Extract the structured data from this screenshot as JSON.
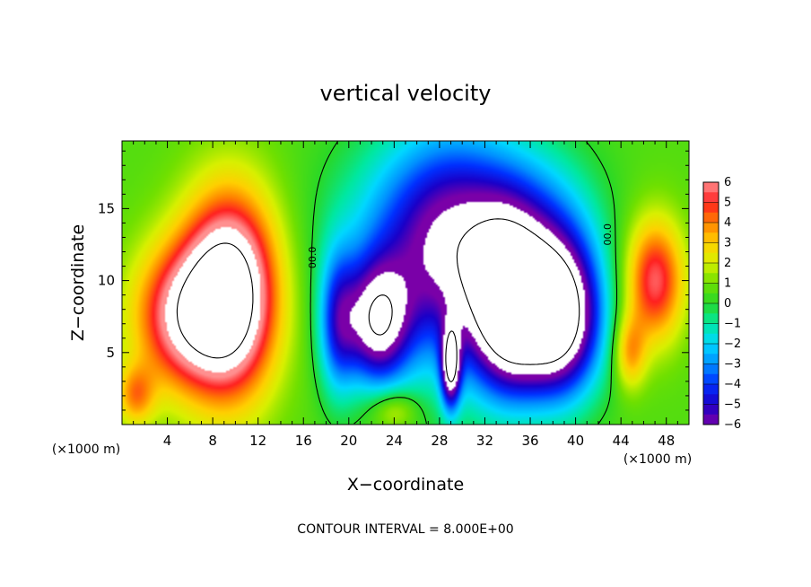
{
  "chart_data": {
    "type": "heatmap",
    "title": "vertical velocity",
    "xlabel": "X−coordinate",
    "ylabel": "Z−coordinate",
    "x_unit": "(×1000 m)",
    "y_unit": "(×1000 m)",
    "xlim": [
      0,
      50
    ],
    "ylim": [
      0,
      19.7
    ],
    "x_ticks": [
      4,
      8,
      12,
      16,
      20,
      24,
      28,
      32,
      36,
      40,
      44,
      48
    ],
    "y_ticks": [
      5,
      10,
      15
    ],
    "footer": "CONTOUR INTERVAL = 8.000E+00",
    "contour_label": "00.0",
    "colorbar": {
      "min": -6,
      "max": 6,
      "ticks": [
        6,
        5,
        4,
        3,
        2,
        1,
        0,
        -1,
        -2,
        -3,
        -4,
        -5,
        -6
      ],
      "tick_labels": [
        "6",
        "5",
        "4",
        "3",
        "2",
        "1",
        "0",
        "−1",
        "−2",
        "−3",
        "−4",
        "−5",
        "−6"
      ],
      "colors": [
        "#7a00a8",
        "#1a00c8",
        "#0030ff",
        "#0090ff",
        "#00d8ff",
        "#00e8a0",
        "#28d828",
        "#70e000",
        "#d8f000",
        "#ffd000",
        "#ff8000",
        "#ff2020",
        "#ff9090"
      ],
      "over_color": "#ffffff",
      "under_color": "#ffffff"
    },
    "anomalies": [
      {
        "x": 9.5,
        "z": 9.0,
        "value": 9,
        "sx": 2.9,
        "sz": 4.8
      },
      {
        "x": 5.0,
        "z": 7.5,
        "value": 5,
        "sx": 3.0,
        "sz": 3.5
      },
      {
        "x": 1.2,
        "z": 2.0,
        "value": 3,
        "sx": 1.2,
        "sz": 1.5
      },
      {
        "x": 47.0,
        "z": 10.0,
        "value": 5,
        "sx": 1.8,
        "sz": 3.0
      },
      {
        "x": 44.8,
        "z": 5.0,
        "value": 3,
        "sx": 1.0,
        "sz": 1.8
      },
      {
        "x": 24.0,
        "z": 1.0,
        "value": 2,
        "sx": 1.5,
        "sz": 1.0
      },
      {
        "x": 38.5,
        "z": 7.5,
        "value": -10,
        "sx": 2.6,
        "sz": 3.8
      },
      {
        "x": 34.0,
        "z": 8.0,
        "value": -8,
        "sx": 2.3,
        "sz": 4.0
      },
      {
        "x": 22.5,
        "z": 7.0,
        "value": -7,
        "sx": 2.0,
        "sz": 3.0
      },
      {
        "x": 29.5,
        "z": 11.5,
        "value": -5,
        "sx": 4.0,
        "sz": 6.0
      },
      {
        "x": 29.0,
        "z": 4.0,
        "value": -7,
        "sx": 0.6,
        "sz": 2.0
      },
      {
        "x": 25.5,
        "z": 13.0,
        "value": -3,
        "sx": 5.0,
        "sz": 5.0
      },
      {
        "x": 36.0,
        "z": 14.0,
        "value": -3,
        "sx": 4.0,
        "sz": 4.0
      },
      {
        "x": 19.0,
        "z": 7.0,
        "value": -4,
        "sx": 1.2,
        "sz": 3.5
      }
    ],
    "base_value": 0.6
  }
}
